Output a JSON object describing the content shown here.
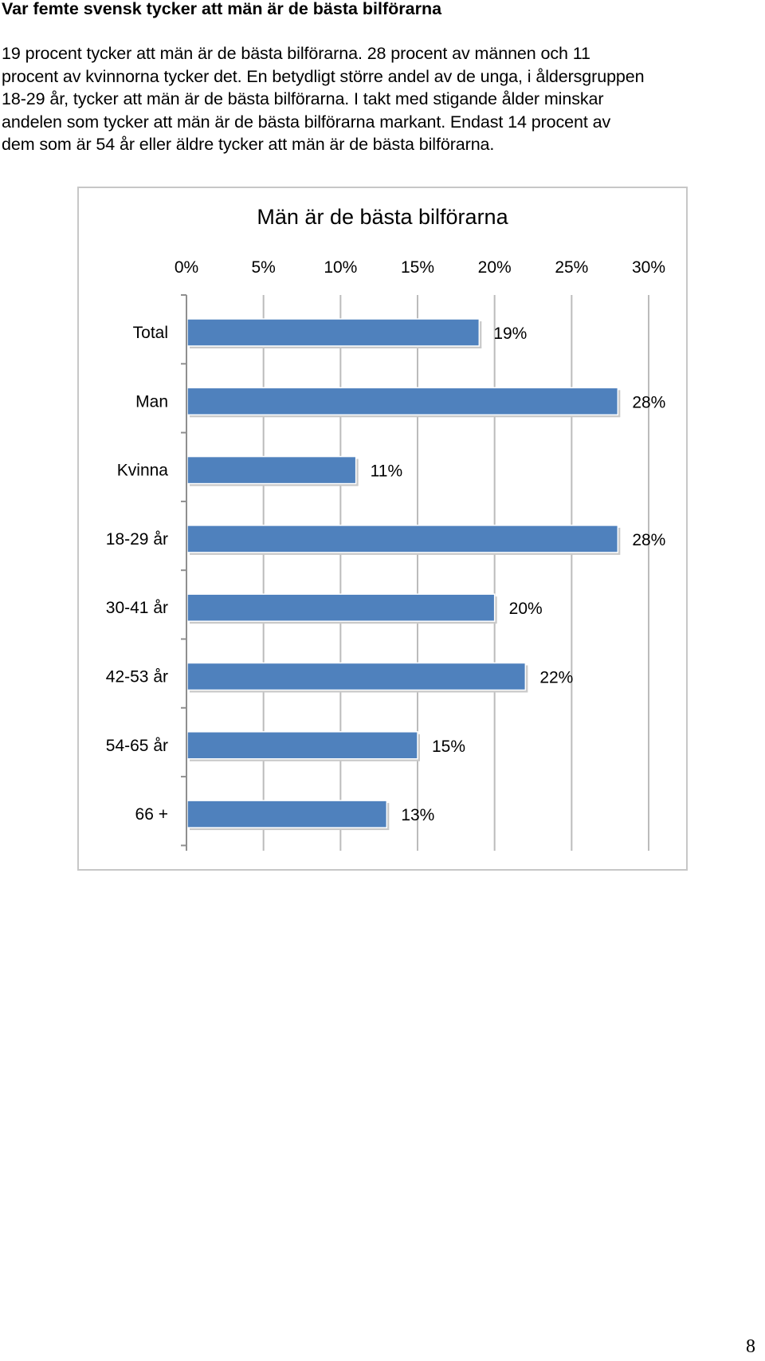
{
  "document": {
    "heading": "Var femte svensk tycker att män är de bästa bilförarna",
    "paragraph_lines": [
      "19 procent tycker att män är de bästa bilförarna. 28 procent av männen och 11",
      "procent av kvinnorna tycker det. En betydligt större andel av de unga, i åldersgruppen",
      "18-29 år, tycker att män är de bästa bilförarna. I takt med stigande ålder minskar",
      "andelen som tycker att män är de bästa bilförarna markant. Endast 14 procent av",
      "dem som är 54 år eller äldre tycker att män är de bästa bilförarna."
    ],
    "page_number": "8"
  },
  "chart_data": {
    "type": "bar",
    "orientation": "horizontal",
    "title": "Män är de bästa bilförarna",
    "categories": [
      "Total",
      "Man",
      "Kvinna",
      "18-29 år",
      "30-41 år",
      "42-53 år",
      "54-65 år",
      "66 +"
    ],
    "values": [
      19,
      28,
      11,
      28,
      20,
      22,
      15,
      13
    ],
    "value_labels": [
      "19%",
      "28%",
      "11%",
      "28%",
      "20%",
      "22%",
      "15%",
      "13%"
    ],
    "x_ticks": [
      0,
      5,
      10,
      15,
      20,
      25,
      30
    ],
    "x_tick_labels": [
      "0%",
      "5%",
      "10%",
      "15%",
      "20%",
      "25%",
      "30%"
    ],
    "xlabel": "",
    "ylabel": "",
    "xlim": [
      0,
      30
    ],
    "grid": true,
    "axis_position": "top",
    "legend": "none",
    "bar_color": "#4f81bd"
  }
}
